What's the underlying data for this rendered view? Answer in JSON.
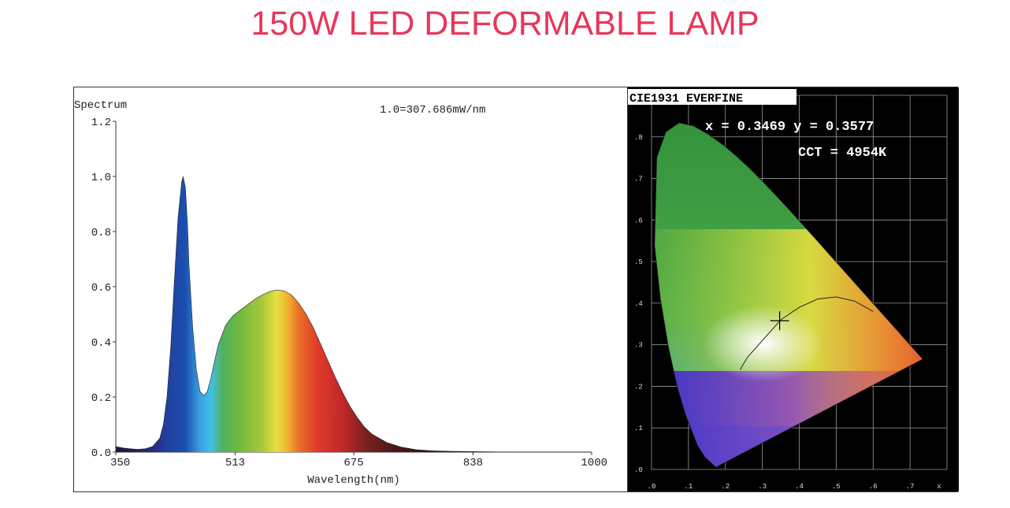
{
  "page_title": "150W LED DEFORMABLE LAMP",
  "chart_data": [
    {
      "type": "area",
      "title": "Spectrum",
      "annotation": "1.0=307.686mW/nm",
      "xlabel": "Wavelength(nm)",
      "ylabel": "",
      "xlim": [
        350,
        1000
      ],
      "ylim": [
        0,
        1.2
      ],
      "x_ticks": [
        "350",
        "513",
        "675",
        "838",
        "1000"
      ],
      "y_ticks": [
        "0.0",
        "0.2",
        "0.4",
        "0.6",
        "0.8",
        "1.0",
        "1.2"
      ],
      "grid": false,
      "colors": {
        "fill": "spectral-gradient"
      },
      "x": [
        350,
        360,
        370,
        380,
        390,
        400,
        410,
        415,
        420,
        425,
        430,
        435,
        440,
        442,
        445,
        448,
        450,
        455,
        460,
        465,
        470,
        475,
        480,
        485,
        490,
        500,
        510,
        520,
        530,
        540,
        550,
        560,
        570,
        580,
        590,
        600,
        610,
        620,
        630,
        640,
        650,
        660,
        670,
        680,
        690,
        700,
        720,
        740,
        760,
        780,
        800,
        850,
        900,
        1000
      ],
      "y": [
        0.02,
        0.015,
        0.012,
        0.01,
        0.012,
        0.02,
        0.05,
        0.1,
        0.2,
        0.38,
        0.62,
        0.85,
        0.98,
        1.0,
        0.96,
        0.82,
        0.68,
        0.45,
        0.3,
        0.22,
        0.205,
        0.22,
        0.27,
        0.33,
        0.39,
        0.46,
        0.495,
        0.515,
        0.535,
        0.555,
        0.57,
        0.582,
        0.588,
        0.585,
        0.57,
        0.54,
        0.5,
        0.45,
        0.39,
        0.33,
        0.27,
        0.215,
        0.165,
        0.125,
        0.09,
        0.065,
        0.035,
        0.018,
        0.009,
        0.005,
        0.003,
        0.001,
        0.0,
        0.0
      ]
    },
    {
      "type": "scatter",
      "title": "CIE1931 EVERFINE",
      "readout_xy": "x = 0.3469 y = 0.3577",
      "readout_cct": "CCT = 4954K",
      "x_ticks": [
        ".0",
        ".1",
        ".2",
        ".3",
        ".4",
        ".5",
        ".6",
        ".7",
        "x"
      ],
      "y_ticks": [
        ".8",
        ".7",
        ".6",
        ".5",
        ".4",
        ".3",
        ".2",
        ".1",
        ".0"
      ],
      "xlim": [
        0,
        0.8
      ],
      "ylim": [
        0,
        0.9
      ],
      "point": {
        "x": 0.3469,
        "y": 0.3577
      },
      "locus": [
        [
          0.1741,
          0.005
        ],
        [
          0.144,
          0.0297
        ],
        [
          0.1241,
          0.0578
        ],
        [
          0.0913,
          0.1327
        ],
        [
          0.0687,
          0.2007
        ],
        [
          0.0454,
          0.295
        ],
        [
          0.0235,
          0.4127
        ],
        [
          0.0082,
          0.5384
        ],
        [
          0.0139,
          0.7502
        ],
        [
          0.0389,
          0.812
        ],
        [
          0.0743,
          0.8338
        ],
        [
          0.1142,
          0.8262
        ],
        [
          0.1547,
          0.8059
        ],
        [
          0.1929,
          0.7816
        ],
        [
          0.2296,
          0.7543
        ],
        [
          0.2658,
          0.7243
        ],
        [
          0.3016,
          0.6923
        ],
        [
          0.3373,
          0.6589
        ],
        [
          0.3731,
          0.6245
        ],
        [
          0.4087,
          0.5896
        ],
        [
          0.4441,
          0.5547
        ],
        [
          0.4788,
          0.5202
        ],
        [
          0.5125,
          0.4866
        ],
        [
          0.5448,
          0.4544
        ],
        [
          0.5752,
          0.4242
        ],
        [
          0.6029,
          0.3965
        ],
        [
          0.627,
          0.3725
        ],
        [
          0.6482,
          0.3514
        ],
        [
          0.6658,
          0.334
        ],
        [
          0.6915,
          0.3083
        ],
        [
          0.7347,
          0.2653
        ]
      ],
      "planckian": [
        [
          0.6,
          0.38
        ],
        [
          0.55,
          0.405
        ],
        [
          0.5,
          0.415
        ],
        [
          0.45,
          0.41
        ],
        [
          0.4,
          0.39
        ],
        [
          0.35,
          0.36
        ],
        [
          0.3,
          0.31
        ],
        [
          0.26,
          0.27
        ],
        [
          0.24,
          0.24
        ]
      ]
    }
  ]
}
